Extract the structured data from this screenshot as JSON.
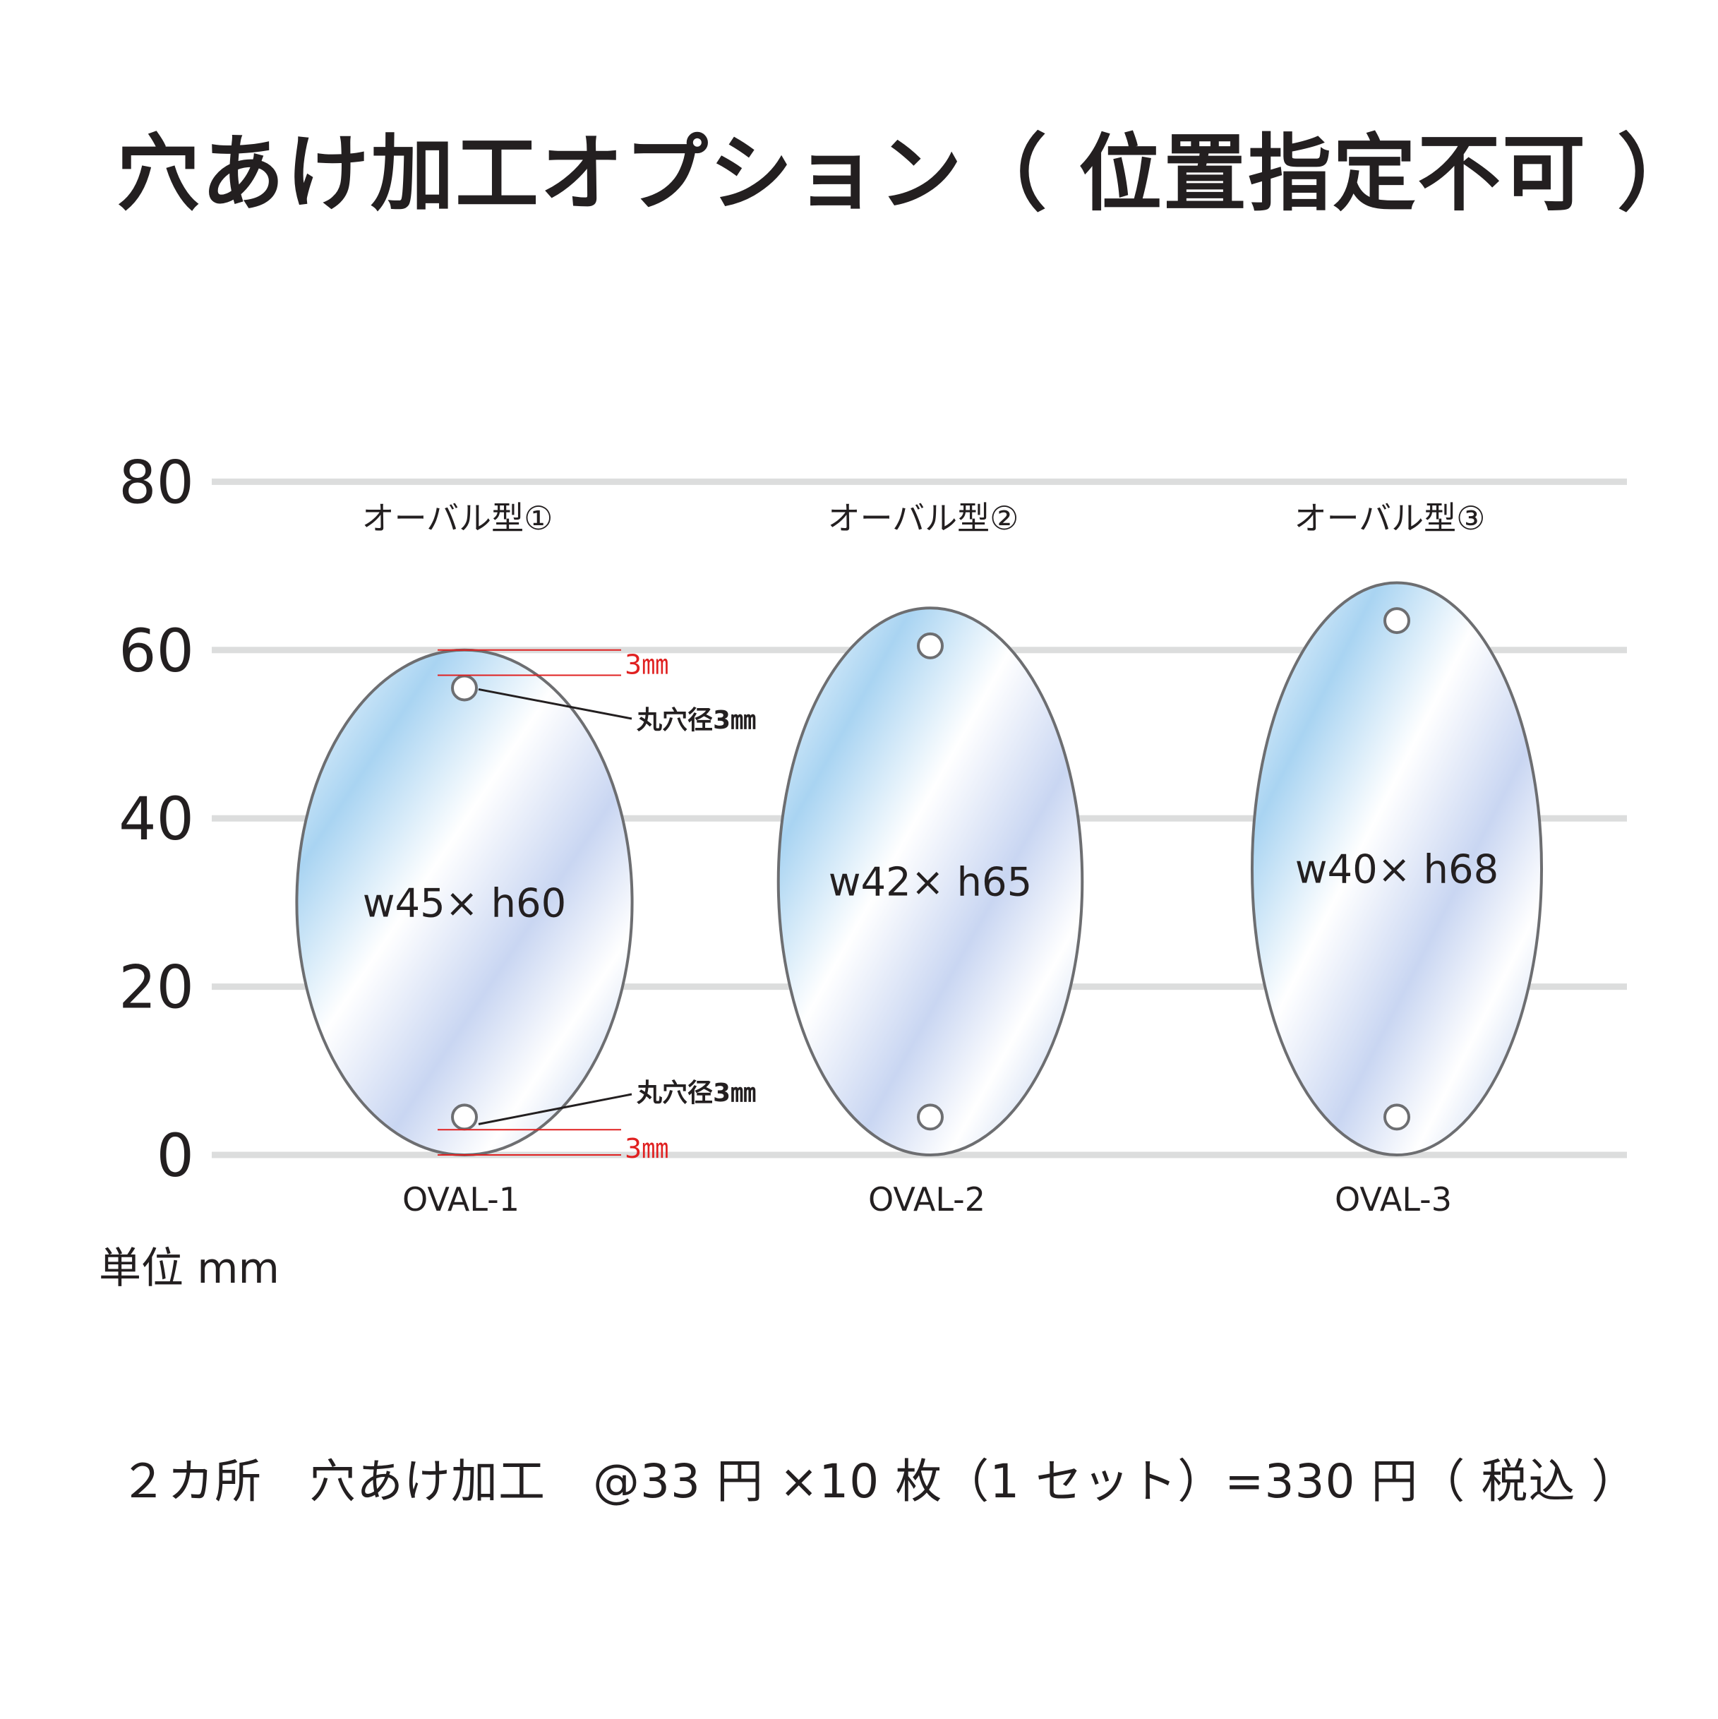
{
  "title": "穴あけ加工オプション（ 位置指定不可 ）",
  "chart_data": {
    "type": "diagram",
    "y_ticks": [
      "80",
      "60",
      "40",
      "20",
      "0"
    ],
    "ylim": [
      0,
      80
    ],
    "unit_label": "単位 mm",
    "ovals": [
      {
        "name": "オーバル型①",
        "code": "OVAL-1",
        "dims": "w45× h60",
        "width": 45,
        "height": 60,
        "hole_top": 55.5,
        "hole_bottom": 4.5
      },
      {
        "name": "オーバル型②",
        "code": "OVAL-2",
        "dims": "w42× h65",
        "width": 42,
        "height": 65,
        "hole_top": 60.5,
        "hole_bottom": 4.5
      },
      {
        "name": "オーバル型③",
        "code": "OVAL-3",
        "dims": "w40× h68",
        "width": 40,
        "height": 68,
        "hole_top": 63.5,
        "hole_bottom": 4.5
      }
    ],
    "annotations": {
      "hole_top_label": "丸穴径3㎜",
      "hole_bottom_label": "丸穴径3㎜",
      "margin_top_label": "3㎜",
      "margin_bottom_label": "3㎜"
    }
  },
  "price_text": "２カ所　穴あけ加工　@33 円 ×10 枚（1 セット）=330 円（ 税込 ）",
  "colors": {
    "grid": "#dcdddd",
    "outline": "#6d6e71",
    "accent_red": "#e02020"
  }
}
